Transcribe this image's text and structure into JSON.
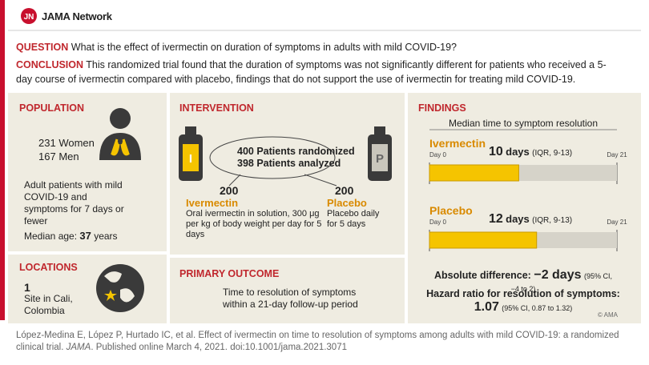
{
  "header": {
    "logo": "JN",
    "brand": "JAMA Network"
  },
  "question": {
    "label": "QUESTION",
    "text": "What is the effect of ivermectin on duration of symptoms in adults with mild COVID-19?"
  },
  "conclusion": {
    "label": "CONCLUSION",
    "text": "This randomized trial found that the duration of symptoms was not significantly different for patients who received a 5-day course of ivermectin compared with placebo, findings that do not support the use of ivermectin for treating mild COVID-19."
  },
  "population": {
    "heading": "POPULATION",
    "groups": [
      {
        "count": 231,
        "label": "Women"
      },
      {
        "count": 167,
        "label": "Men"
      }
    ],
    "description": "Adult patients with mild COVID-19 and symptoms for 7 days or fewer",
    "median_age": {
      "label": "Median age:",
      "value": 37,
      "unit": "years"
    }
  },
  "locations": {
    "heading": "LOCATIONS",
    "count": 1,
    "text": "Site in Cali, Colombia"
  },
  "intervention": {
    "heading": "INTERVENTION",
    "randomized": {
      "count": 400,
      "label": "Patients randomized"
    },
    "analyzed": {
      "count": 398,
      "label": "Patients analyzed"
    },
    "arms": [
      {
        "icon": "I",
        "count": 200,
        "name": "Ivermectin",
        "description": "Oral ivermectin in solution, 300 μg per kg of body weight per day for 5 days"
      },
      {
        "icon": "P",
        "count": 200,
        "name": "Placebo",
        "description": "Placebo daily for 5 days"
      }
    ]
  },
  "primary_outcome": {
    "heading": "PRIMARY OUTCOME",
    "text": "Time to resolution of symptoms within a 21-day follow-up period"
  },
  "findings": {
    "heading": "FINDINGS",
    "subtitle": "Median time to symptom resolution",
    "bar_color": "#f5c400",
    "scale": [
      {
        "value": 0,
        "label": "Day 0"
      },
      {
        "value": 21,
        "label": "Day 21"
      }
    ],
    "groups": [
      {
        "name": "Ivermectin",
        "days": 10,
        "unit": "days",
        "iqr": "(IQR, 9-13)"
      },
      {
        "name": "Placebo",
        "days": 12,
        "unit": "days",
        "iqr": "(IQR, 9-13)"
      }
    ],
    "absolute_difference": {
      "label": "Absolute difference:",
      "value": "−2 days",
      "ci": "(95% CI, −4 to 2)"
    },
    "hazard_ratio": {
      "label": "Hazard ratio for resolution of symptoms:",
      "value": 1.07,
      "ci": "(95% CI, 0.87 to 1.32)"
    },
    "copyright": "© AMA"
  },
  "citation": {
    "text": "López-Medina E, López P, Hurtado IC, et al. Effect of ivermectin on time to resolution of symptoms among adults with mild COVID-19: a randomized clinical trial.",
    "journal": "JAMA",
    "details": ". Published online March 4, 2021. doi:10.1001/jama.2021.3071"
  }
}
